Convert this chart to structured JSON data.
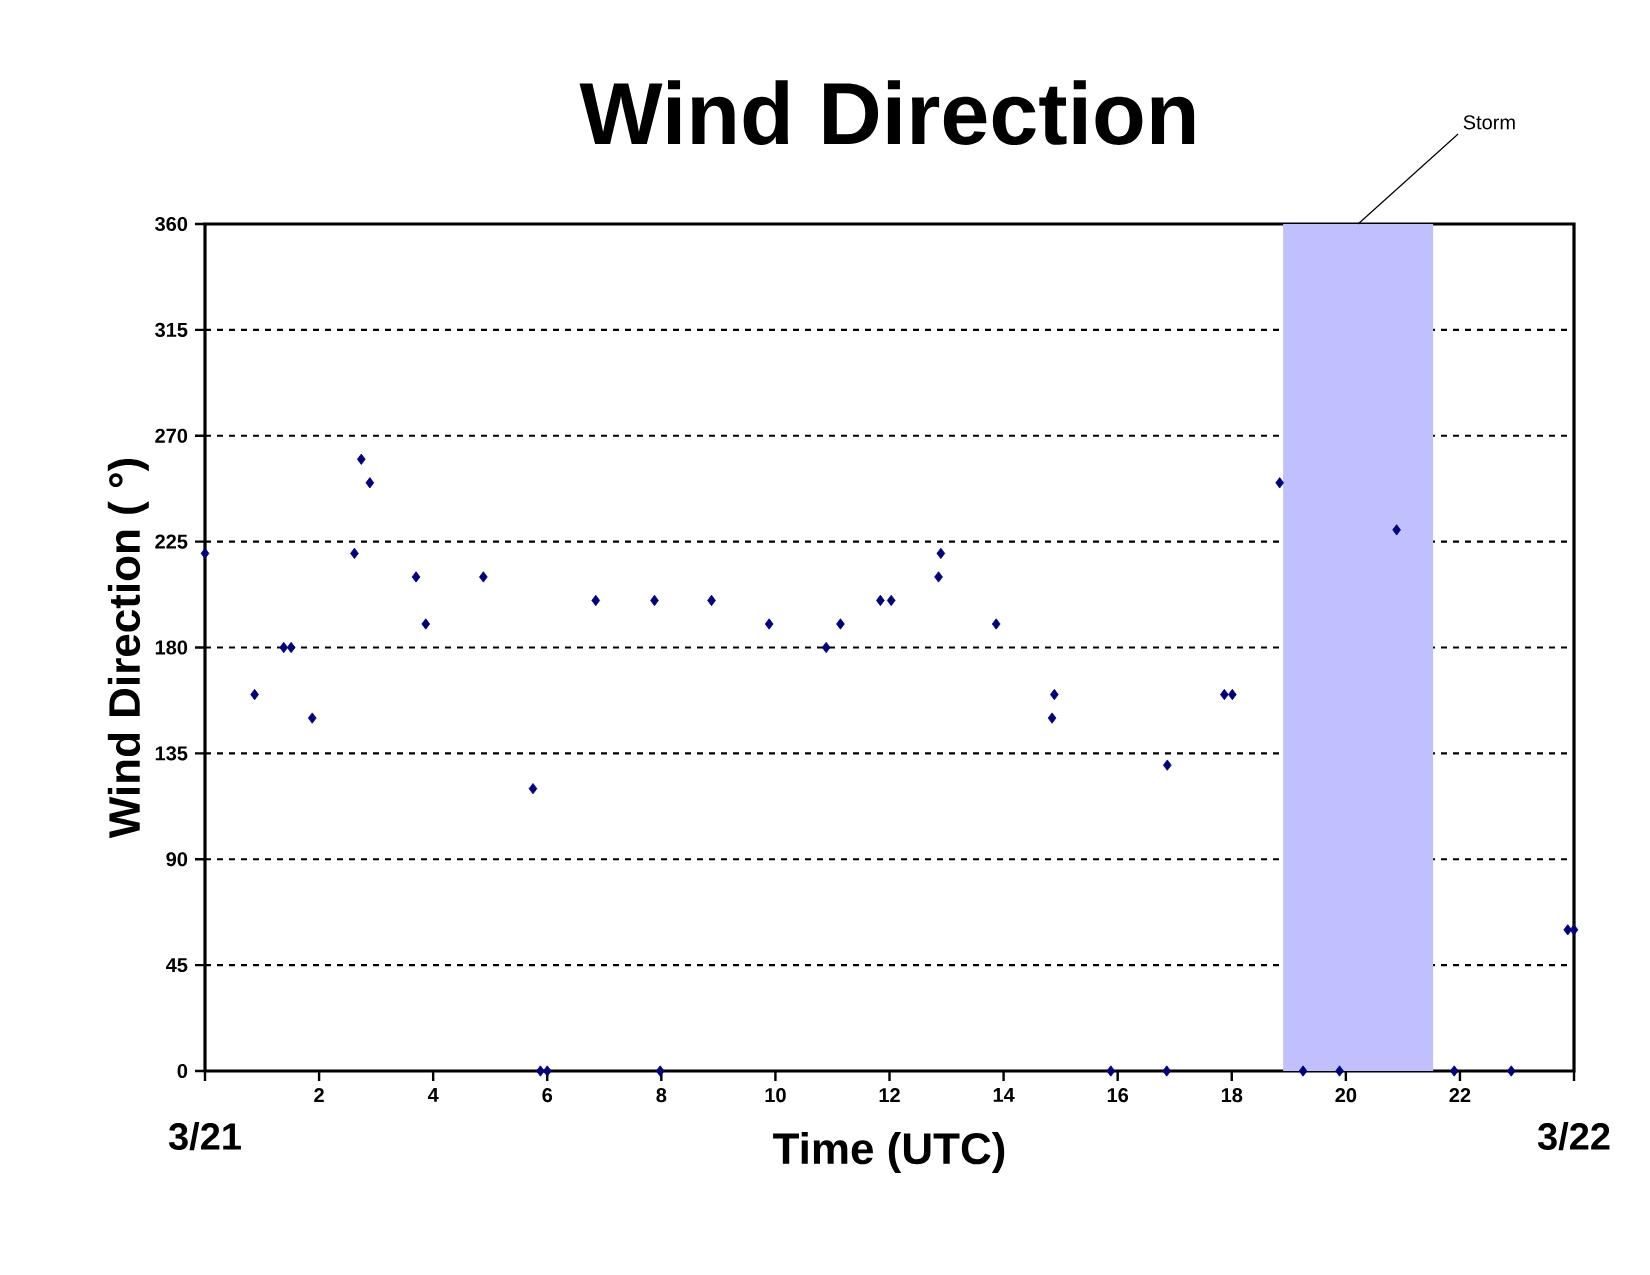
{
  "chart_data": {
    "type": "scatter",
    "title": "Wind Direction",
    "xlabel": "Time (UTC)",
    "ylabel": "Wind Direction ( °)",
    "x": [
      0,
      0.87,
      1.38,
      1.51,
      1.88,
      2.62,
      2.74,
      2.89,
      3.7,
      3.87,
      4.88,
      5.75,
      5.88,
      6.0,
      6.85,
      7.88,
      7.98,
      8.88,
      9.89,
      10.89,
      11.14,
      11.84,
      12.03,
      12.86,
      12.9,
      13.87,
      14.85,
      14.89,
      15.88,
      16.86,
      16.87,
      17.87,
      18.01,
      18.84,
      19.25,
      19.89,
      20.89,
      21.9,
      22.9,
      23.89,
      24.0
    ],
    "values": [
      220,
      160,
      180,
      180,
      150,
      220,
      260,
      250,
      210,
      190,
      210,
      120,
      0,
      0,
      200,
      200,
      0,
      200,
      190,
      180,
      190,
      200,
      200,
      210,
      220,
      190,
      150,
      160,
      0,
      0,
      130,
      160,
      160,
      250,
      0,
      0,
      230,
      0,
      0,
      60,
      60
    ],
    "color": "#000080",
    "marker": "diamond",
    "grid": "y",
    "xlim": [
      0,
      24
    ],
    "xticks": [
      {
        "value": 0,
        "label": null
      },
      2,
      4,
      6,
      8,
      10,
      12,
      14,
      16,
      18,
      20,
      22,
      {
        "value": 24,
        "label": null
      }
    ],
    "annotations": [
      "3/21",
      "3/22"
    ],
    "ylim": [
      0,
      360
    ],
    "yticks": [
      0,
      45,
      90,
      135,
      180,
      225,
      270,
      315,
      360
    ],
    "bands": [
      {
        "axis": "x",
        "from": 18.9,
        "to": 21.53,
        "label": "Storm",
        "color": "#c0c0ff"
      }
    ]
  }
}
